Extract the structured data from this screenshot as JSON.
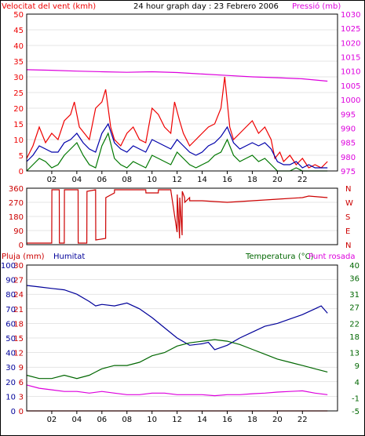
{
  "colors": {
    "wind": "#ee0000",
    "wind_avg": "#0000aa",
    "wind_low": "#007700",
    "pressure": "#dd00dd",
    "direction": "#cc0000",
    "humidity": "#000099",
    "temperature": "#006600",
    "dewpoint": "#dd00dd",
    "rain": "#cc0000",
    "grid": "#000000"
  },
  "chart_data": [
    {
      "type": "line",
      "title": "24 hour graph day : 23 Febrero 2006",
      "y_left_label": "Velocitat del vent (kmh)",
      "y_right_label": "Pressió (mb)",
      "ylim_left": [
        0,
        50
      ],
      "ylim_right": [
        975,
        1030
      ],
      "y_ticks_left": [
        0,
        5,
        10,
        15,
        20,
        25,
        30,
        35,
        40,
        45,
        50
      ],
      "y_ticks_right": [
        975,
        980,
        985,
        990,
        995,
        1000,
        1005,
        1010,
        1015,
        1020,
        1025,
        1030
      ],
      "x_ticks": [
        "02",
        "04",
        "06",
        "08",
        "10",
        "12",
        "14",
        "16",
        "18",
        "20",
        "22"
      ],
      "x_range_hours": [
        0,
        24.8
      ],
      "series": [
        {
          "key": "gust",
          "color_key": "wind",
          "x": [
            0,
            0.5,
            1,
            1.5,
            2,
            2.5,
            3,
            3.5,
            3.8,
            4.2,
            4.6,
            5,
            5.5,
            6,
            6.3,
            6.7,
            7,
            7.5,
            8,
            8.5,
            9,
            9.5,
            10,
            10.5,
            11,
            11.5,
            11.8,
            12.2,
            12.5,
            13,
            13.5,
            14,
            14.5,
            15,
            15.5,
            15.8,
            16.2,
            16.5,
            17,
            17.5,
            18,
            18.5,
            19,
            19.5,
            19.8,
            20.2,
            20.5,
            21,
            21.5,
            22,
            22.5,
            23,
            23.5,
            24
          ],
          "y": [
            4,
            8,
            14,
            9,
            12,
            10,
            16,
            18,
            22,
            14,
            12,
            10,
            20,
            22,
            26,
            14,
            10,
            8,
            12,
            14,
            10,
            9,
            20,
            18,
            14,
            12,
            22,
            16,
            12,
            8,
            10,
            12,
            14,
            15,
            20,
            30,
            14,
            10,
            12,
            14,
            16,
            12,
            14,
            10,
            4,
            6,
            3,
            5,
            2,
            4,
            1,
            2,
            1,
            3
          ]
        },
        {
          "key": "average",
          "color_key": "wind_avg",
          "x": [
            0,
            0.5,
            1,
            1.5,
            2,
            2.5,
            3,
            3.5,
            4,
            4.5,
            5,
            5.5,
            6,
            6.5,
            7,
            7.5,
            8,
            8.5,
            9,
            9.5,
            10,
            10.5,
            11,
            11.5,
            12,
            12.5,
            13,
            13.5,
            14,
            14.5,
            15,
            15.5,
            16,
            16.5,
            17,
            17.5,
            18,
            18.5,
            19,
            19.5,
            20,
            20.5,
            21,
            21.5,
            22,
            22.5,
            23,
            23.5,
            24
          ],
          "y": [
            3,
            5,
            8,
            7,
            6,
            6,
            9,
            10,
            12,
            9,
            7,
            6,
            12,
            15,
            9,
            7,
            6,
            8,
            7,
            6,
            10,
            9,
            8,
            7,
            10,
            8,
            6,
            5,
            6,
            8,
            9,
            11,
            14,
            9,
            7,
            8,
            9,
            8,
            9,
            7,
            3,
            2,
            2,
            3,
            1,
            2,
            1,
            1,
            1
          ]
        },
        {
          "key": "low",
          "color_key": "wind_low",
          "x": [
            0,
            0.5,
            1,
            1.5,
            2,
            2.5,
            3,
            3.5,
            4,
            4.5,
            5,
            5.5,
            6,
            6.5,
            7,
            7.5,
            8,
            8.5,
            9,
            9.5,
            10,
            10.5,
            11,
            11.5,
            12,
            12.5,
            13,
            13.5,
            14,
            14.5,
            15,
            15.5,
            16,
            16.5,
            17,
            17.5,
            18,
            18.5,
            19,
            19.5,
            20,
            20.5,
            21,
            21.5,
            22,
            22.5,
            23,
            23.5,
            24
          ],
          "y": [
            0,
            2,
            4,
            3,
            1,
            2,
            5,
            7,
            9,
            5,
            2,
            1,
            8,
            12,
            4,
            2,
            1,
            3,
            2,
            1,
            5,
            4,
            3,
            2,
            6,
            4,
            2,
            1,
            2,
            3,
            5,
            6,
            10,
            5,
            3,
            4,
            5,
            3,
            4,
            2,
            0,
            0,
            0,
            1,
            0,
            0,
            0,
            0,
            0
          ]
        },
        {
          "key": "pressure",
          "color_key": "pressure",
          "axis": "right",
          "x": [
            0,
            2,
            4,
            6,
            8,
            10,
            12,
            14,
            16,
            18,
            20,
            22,
            24
          ],
          "y": [
            1010.5,
            1010.3,
            1010.0,
            1009.8,
            1009.6,
            1009.8,
            1009.5,
            1009.0,
            1008.5,
            1008.0,
            1007.7,
            1007.3,
            1006.5
          ]
        }
      ]
    },
    {
      "type": "line",
      "ylim": [
        0,
        360
      ],
      "y_ticks": [
        0,
        90,
        180,
        270,
        360
      ],
      "y_ticks_right": [
        "N",
        "E",
        "S",
        "W",
        "N"
      ],
      "x_range_hours": [
        0,
        24.8
      ],
      "series": [
        {
          "key": "direction",
          "color_key": "direction",
          "x": [
            0,
            2.0,
            2.01,
            2.6,
            2.61,
            3.0,
            3.01,
            4.1,
            4.11,
            4.8,
            4.81,
            5.5,
            5.51,
            6.3,
            6.31,
            7.0,
            7.01,
            9.5,
            9.51,
            10.5,
            10.51,
            11.5,
            11.51,
            12.0,
            12.01,
            12.2,
            12.21,
            12.4,
            12.41,
            12.6,
            12.61,
            13.0,
            13.01,
            14,
            16,
            18,
            20,
            22,
            22.5,
            24
          ],
          "y": [
            10,
            10,
            350,
            350,
            10,
            10,
            350,
            350,
            10,
            10,
            340,
            350,
            30,
            40,
            300,
            330,
            350,
            350,
            330,
            330,
            350,
            350,
            340,
            80,
            320,
            40,
            300,
            60,
            340,
            300,
            270,
            300,
            280,
            280,
            270,
            280,
            290,
            300,
            310,
            300
          ]
        }
      ]
    },
    {
      "type": "line",
      "y_left1_label": "Pluja (mm)",
      "y_left2_label": "Humitat",
      "y_right1_label": "Temperatura (°C)",
      "y_right2_label": "Punt rosada",
      "ylim_rain": [
        0,
        30
      ],
      "ylim_humidity": [
        0,
        100
      ],
      "ylim_temperature": [
        -5,
        40
      ],
      "y_ticks_rain": [
        0,
        3,
        6,
        9,
        12,
        15,
        18,
        21,
        24,
        27,
        30
      ],
      "y_ticks_humidity": [
        0,
        10,
        20,
        30,
        40,
        50,
        60,
        70,
        80,
        90,
        100
      ],
      "y_ticks_temperature": [
        -5,
        -1,
        4,
        9,
        13,
        18,
        22,
        27,
        31,
        36,
        40
      ],
      "x_ticks": [
        "02",
        "04",
        "06",
        "08",
        "10",
        "12",
        "14",
        "16",
        "18",
        "20",
        "22"
      ],
      "x_range_hours": [
        0,
        24.8
      ],
      "series": [
        {
          "key": "humidity",
          "color_key": "humidity",
          "axis": "humidity",
          "x": [
            0,
            1,
            2,
            3,
            4,
            5,
            5.5,
            6,
            7,
            8,
            9,
            10,
            11,
            12,
            13,
            14,
            14.5,
            15,
            16,
            17,
            18,
            19,
            20,
            21,
            22,
            23,
            23.5,
            24
          ],
          "y": [
            86,
            85,
            84,
            83,
            80,
            75,
            72,
            73,
            72,
            74,
            70,
            64,
            57,
            50,
            45,
            46,
            47,
            42,
            45,
            50,
            54,
            58,
            60,
            63,
            66,
            70,
            72,
            67
          ]
        },
        {
          "key": "temperature",
          "color_key": "temperature",
          "axis": "temperature",
          "x": [
            0,
            1,
            2,
            3,
            4,
            5,
            5.5,
            6,
            7,
            8,
            9,
            10,
            11,
            12,
            13,
            14,
            15,
            16,
            17,
            18,
            19,
            20,
            21,
            22,
            23,
            24
          ],
          "y": [
            6,
            5,
            5,
            6,
            5,
            6,
            7,
            8,
            9,
            9,
            10,
            12,
            13,
            15,
            16,
            16.5,
            17,
            16.5,
            15.5,
            14,
            12.5,
            11,
            10,
            9,
            8,
            7
          ]
        },
        {
          "key": "dewpoint",
          "color_key": "dewpoint",
          "axis": "temperature",
          "x": [
            0,
            1,
            2,
            3,
            4,
            5,
            6,
            7,
            8,
            9,
            10,
            11,
            12,
            13,
            14,
            15,
            16,
            17,
            18,
            19,
            20,
            21,
            22,
            23,
            24
          ],
          "y": [
            3,
            2,
            1.5,
            1,
            1,
            0.5,
            1,
            0.5,
            0,
            0,
            0.5,
            0.5,
            0,
            0,
            0,
            -0.3,
            0,
            0,
            0.3,
            0.5,
            0.8,
            1,
            1.2,
            0.5,
            0
          ]
        },
        {
          "key": "rain",
          "color_key": "rain",
          "axis": "rain",
          "x": [
            0,
            24
          ],
          "y": [
            0,
            0
          ]
        }
      ]
    }
  ]
}
